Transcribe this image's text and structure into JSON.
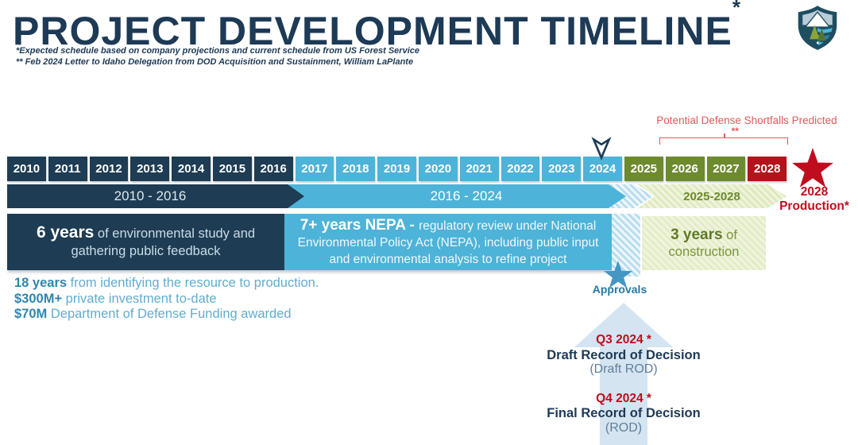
{
  "header": {
    "title": "PROJECT DEVELOPMENT TIMELINE",
    "title_asterisk": "*",
    "footnote1": "*Expected schedule based on company projections and current schedule from US Forest Service",
    "footnote2": "** Feb 2024 Letter to Idaho Delegation from DOD Acquisition and Sustainment, William LaPlante"
  },
  "annotation": {
    "shortfalls_label": "Potential Defense Shortfalls Predicted",
    "shortfalls_note": "**"
  },
  "timeline": {
    "years": [
      {
        "label": "2010",
        "phase": "study"
      },
      {
        "label": "2011",
        "phase": "study"
      },
      {
        "label": "2012",
        "phase": "study"
      },
      {
        "label": "2013",
        "phase": "study"
      },
      {
        "label": "2014",
        "phase": "study"
      },
      {
        "label": "2015",
        "phase": "study"
      },
      {
        "label": "2016",
        "phase": "study"
      },
      {
        "label": "2017",
        "phase": "nepa"
      },
      {
        "label": "2018",
        "phase": "nepa"
      },
      {
        "label": "2019",
        "phase": "nepa"
      },
      {
        "label": "2020",
        "phase": "nepa"
      },
      {
        "label": "2021",
        "phase": "nepa"
      },
      {
        "label": "2022",
        "phase": "nepa"
      },
      {
        "label": "2023",
        "phase": "nepa"
      },
      {
        "label": "2024",
        "phase": "nepa"
      },
      {
        "label": "2025",
        "phase": "construction"
      },
      {
        "label": "2026",
        "phase": "construction"
      },
      {
        "label": "2027",
        "phase": "construction"
      },
      {
        "label": "2028",
        "phase": "production"
      }
    ]
  },
  "bars": {
    "study_range": "2010 - 2016",
    "nepa_range": "2016 - 2024",
    "construction_range": "2025-2028",
    "production_line1": "2028",
    "production_line2": "Production*"
  },
  "blocks": {
    "study_bold": "6 years",
    "study_rest": " of environmental study and gathering public feedback",
    "nepa_bold": "7+ years NEPA - ",
    "nepa_rest": "regulatory review under National Environmental Policy Act (NEPA), including public input and environmental analysis to refine project",
    "construction_bold": "3 years",
    "construction_rest": " of construction"
  },
  "stats": [
    {
      "bold": "18 years",
      "rest": " from identifying the resource to production."
    },
    {
      "bold": "$300M+",
      "rest": " private investment to-date"
    },
    {
      "bold": "$70M",
      "rest": " Department of Defense Funding awarded"
    }
  ],
  "approvals": {
    "label": "Approvals"
  },
  "rod": {
    "q3_date": "Q3 2024 *",
    "q3_title": "Draft Record of Decision",
    "q3_sub": "(Draft ROD)",
    "q4_date": "Q4 2024 *",
    "q4_title": "Final Record of Decision",
    "q4_sub": "(ROD)"
  },
  "colors": {
    "navy": "#1e3c53",
    "light_blue": "#4db3d8",
    "olive": "#6d8a2f",
    "red_cell": "#b5121b",
    "bright_red": "#c00d1e",
    "soft_red": "#df5b5b",
    "stats_bold_blue": "#2e86ae",
    "stats_light_blue": "#63acce",
    "approvals_blue": "#4597c3",
    "big_arrow_blue": "#d4e4f1"
  }
}
